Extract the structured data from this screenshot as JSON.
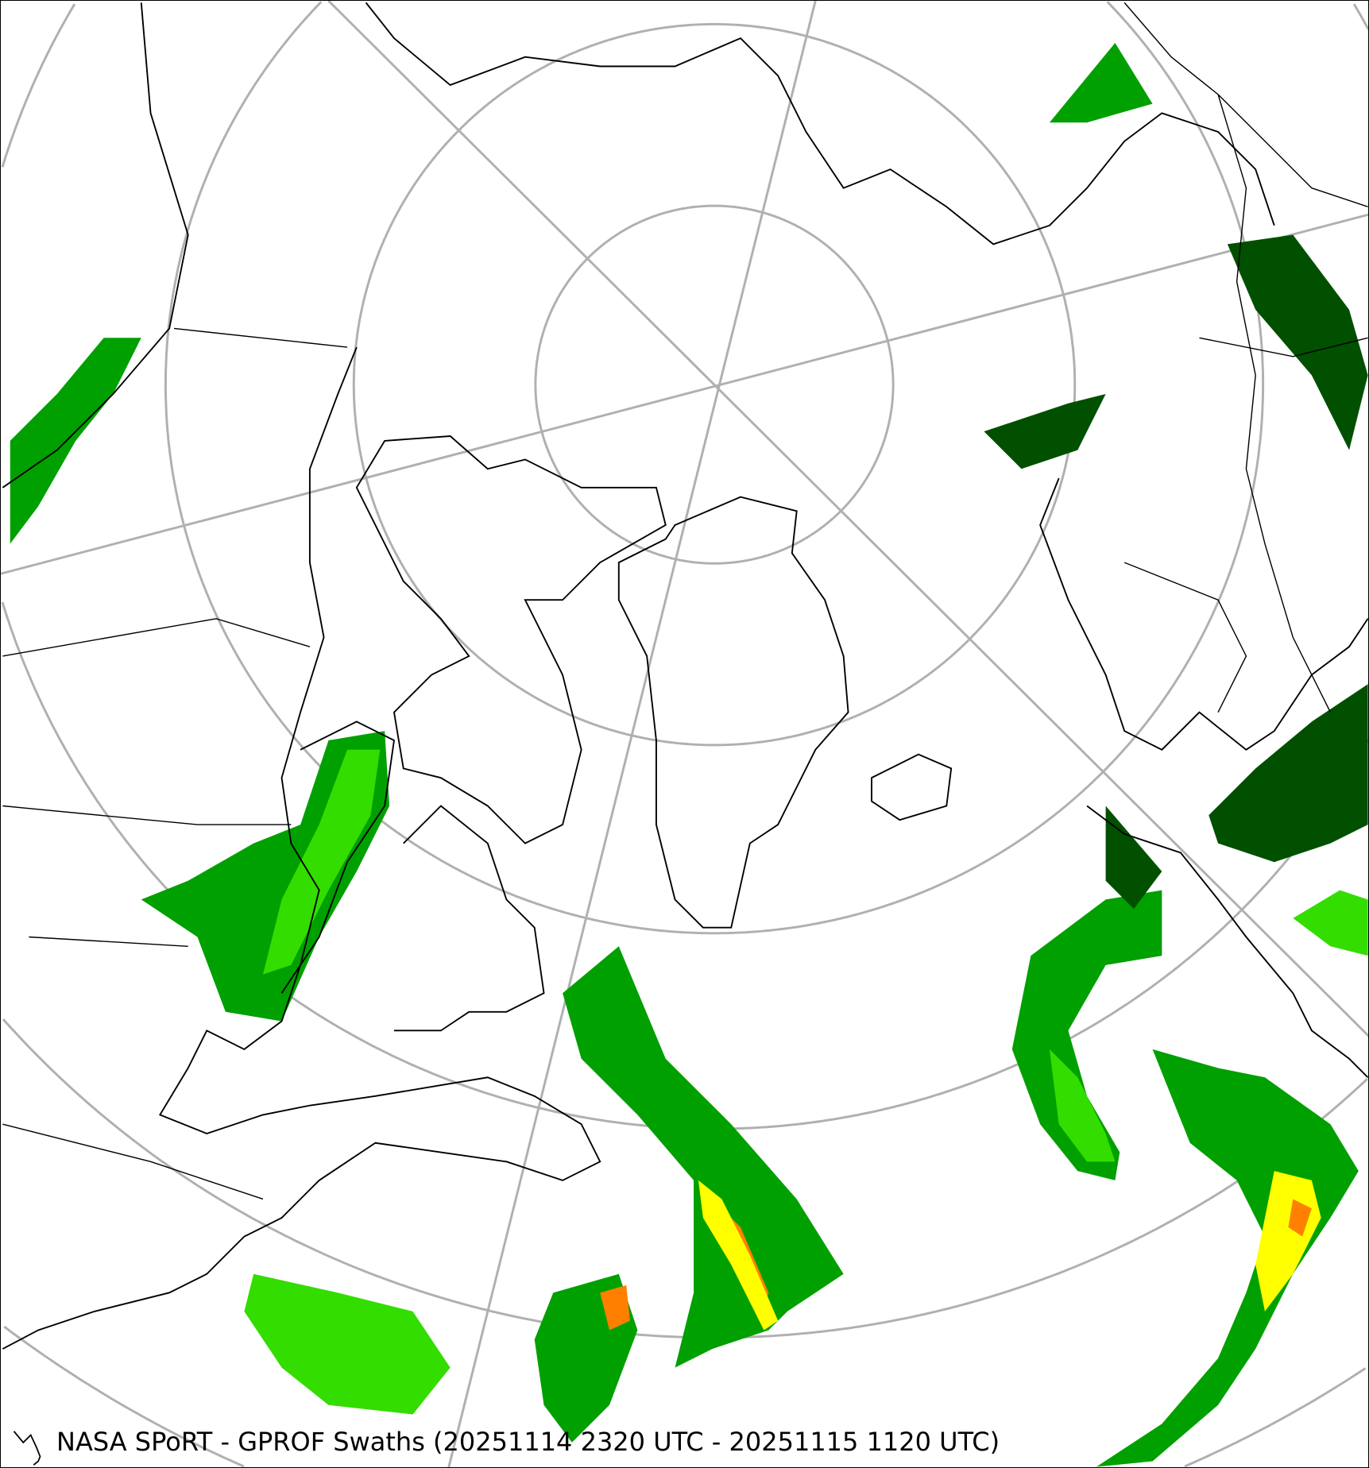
{
  "map": {
    "caption": "NASA SPoRT - GPROF Swaths (20251114 2320 UTC - 20251115 1120 UTC)",
    "projection": "north-polar-stereographic",
    "graticule": "on",
    "colors": {
      "graticule": "#b0b0b0",
      "coastline": "#000000",
      "precip_light": "#005000",
      "precip_moderate": "#00a000",
      "precip_heavier": "#33dd00",
      "precip_heavy": "#ffff00",
      "precip_intense": "#ff8000"
    }
  }
}
